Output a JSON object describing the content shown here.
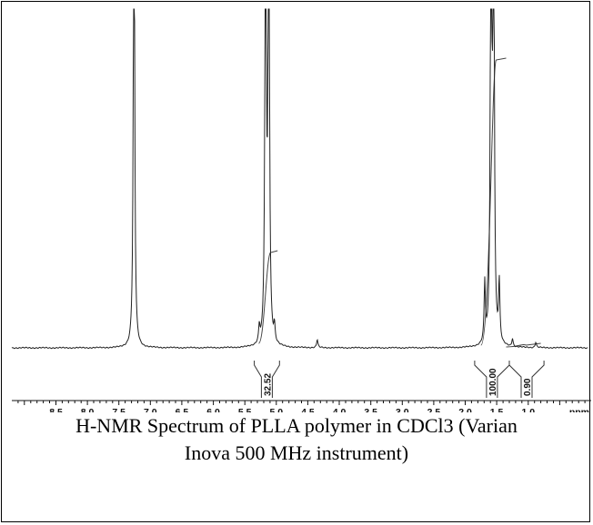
{
  "caption": {
    "line1": "H-NMR Spectrum of PLLA polymer in CDCl3 (Varian",
    "line2": "Inova 500 MHz instrument)"
  },
  "chart_data": {
    "type": "line",
    "title": "",
    "xlabel": "",
    "ylabel": "",
    "x_unit_label": "ppm",
    "x_reversed": true,
    "xlim": [
      9.2,
      0.0
    ],
    "x_ticks": [
      "8.5",
      "8.0",
      "7.5",
      "7.0",
      "6.5",
      "6.0",
      "5.5",
      "5.0",
      "4.5",
      "4.0",
      "3.5",
      "3.0",
      "2.5",
      "2.0",
      "1.5",
      "1.0"
    ],
    "grid": false,
    "colors": {
      "trace": "#222222",
      "integral": "#444444"
    },
    "peaks": [
      {
        "shift": 7.26,
        "relative_height": 1.0
      },
      {
        "shift": 5.17,
        "relative_height": 1.0
      },
      {
        "shift": 5.12,
        "relative_height": 1.0
      },
      {
        "shift": 5.27,
        "relative_height": 0.03
      },
      {
        "shift": 5.03,
        "relative_height": 0.03
      },
      {
        "shift": 4.35,
        "relative_height": 0.015
      },
      {
        "shift": 1.69,
        "relative_height": 0.11
      },
      {
        "shift": 1.59,
        "relative_height": 1.0
      },
      {
        "shift": 1.55,
        "relative_height": 1.0
      },
      {
        "shift": 1.46,
        "relative_height": 0.11
      },
      {
        "shift": 1.25,
        "relative_height": 0.015
      },
      {
        "shift": 0.88,
        "relative_height": 0.01
      }
    ],
    "integrals": [
      {
        "label": "32.52",
        "from": 5.35,
        "to": 4.95
      },
      {
        "label": "100.00",
        "from": 1.85,
        "to": 1.3
      },
      {
        "label": "0.90",
        "from": 1.3,
        "to": 0.75
      }
    ]
  }
}
